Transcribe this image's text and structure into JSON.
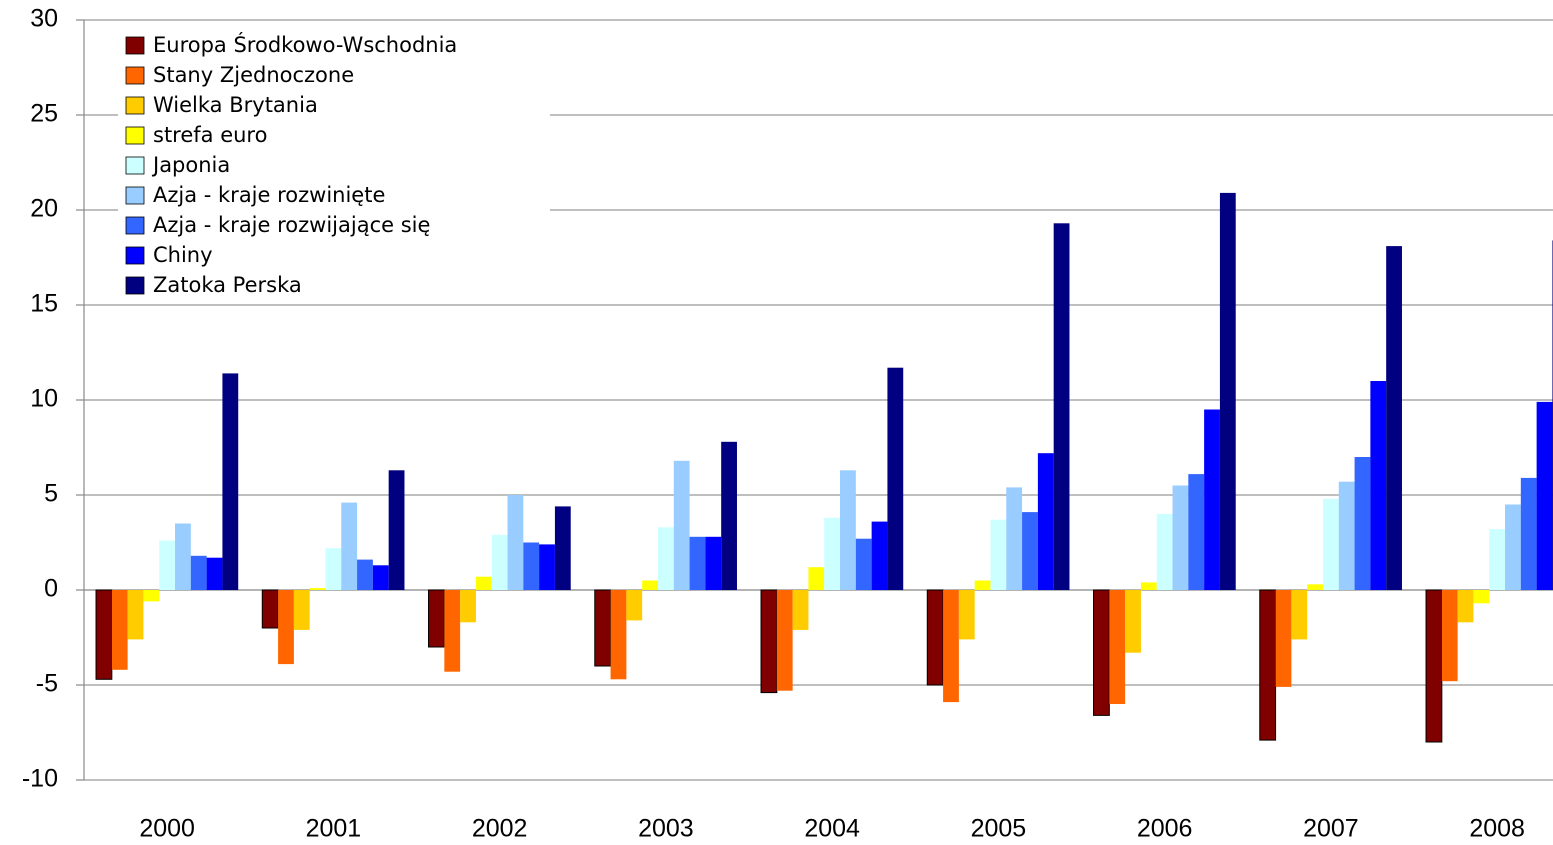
{
  "chart_data": {
    "type": "bar",
    "categories": [
      "2000",
      "2001",
      "2002",
      "2003",
      "2004",
      "2005",
      "2006",
      "2007",
      "2008"
    ],
    "series": [
      {
        "name": "Europa Środkowo-Wschodnia",
        "color": "#800000",
        "values": [
          -4.7,
          -2.0,
          -3.0,
          -4.0,
          -5.4,
          -5.0,
          -6.6,
          -7.9,
          -8.0
        ]
      },
      {
        "name": "Stany Zjednoczone",
        "color": "#ff6600",
        "values": [
          -4.2,
          -3.9,
          -4.3,
          -4.7,
          -5.3,
          -5.9,
          -6.0,
          -5.1,
          -4.8
        ]
      },
      {
        "name": "Wielka Brytania",
        "color": "#ffcc00",
        "values": [
          -2.6,
          -2.1,
          -1.7,
          -1.6,
          -2.1,
          -2.6,
          -3.3,
          -2.6,
          -1.7
        ]
      },
      {
        "name": "strefa euro",
        "color": "#ffff00",
        "values": [
          -0.6,
          0.1,
          0.7,
          0.5,
          1.2,
          0.5,
          0.4,
          0.3,
          -0.7
        ]
      },
      {
        "name": "Japonia",
        "color": "#ccffff",
        "values": [
          2.6,
          2.2,
          2.9,
          3.3,
          3.8,
          3.7,
          4.0,
          4.8,
          3.2
        ]
      },
      {
        "name": "Azja - kraje rozwinięte",
        "color": "#99ccff",
        "values": [
          3.5,
          4.6,
          5.0,
          6.8,
          6.3,
          5.4,
          5.5,
          5.7,
          4.5
        ]
      },
      {
        "name": "Azja - kraje rozwijające się",
        "color": "#3366ff",
        "values": [
          1.8,
          1.6,
          2.5,
          2.8,
          2.7,
          4.1,
          6.1,
          7.0,
          5.9
        ]
      },
      {
        "name": "Chiny",
        "color": "#0000ff",
        "values": [
          1.7,
          1.3,
          2.4,
          2.8,
          3.6,
          7.2,
          9.5,
          11.0,
          9.9
        ]
      },
      {
        "name": "Zatoka Perska",
        "color": "#000080",
        "values": [
          11.4,
          6.3,
          4.4,
          7.8,
          11.7,
          19.3,
          20.9,
          18.1,
          18.4
        ]
      }
    ],
    "ylim": [
      -10,
      30
    ],
    "yticks": [
      -10,
      -5,
      0,
      5,
      10,
      15,
      20,
      25,
      30
    ],
    "grid": true,
    "legend": "top-left"
  }
}
